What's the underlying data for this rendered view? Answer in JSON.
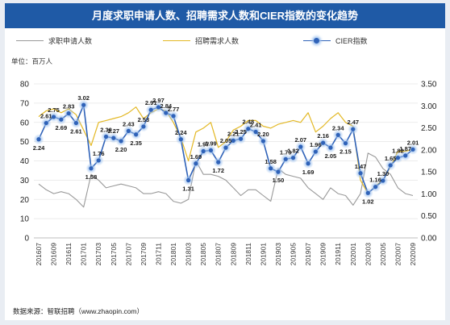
{
  "title": "月度求职申请人数、招聘需求人数和CIER指数的变化趋势",
  "unit_label": "单位：百万人",
  "source_label": "数据来源：智联招聘（www.zhaopin.com）",
  "colors": {
    "applicants": "#999999",
    "demand": "#e3b824",
    "cier": "#2f62b8",
    "title_bg": "#1f5aa6",
    "marker_glow": "#9fc2ee"
  },
  "chart_data": {
    "type": "line",
    "title": "月度求职申请人数、招聘需求人数和CIER指数的变化趋势",
    "x": [
      "201607",
      "201608",
      "201609",
      "201610",
      "201611",
      "201612",
      "201701",
      "201702",
      "201703",
      "201704",
      "201705",
      "201706",
      "201707",
      "201708",
      "201709",
      "201710",
      "201711",
      "201712",
      "201801",
      "201802",
      "201803",
      "201804",
      "201805",
      "201806",
      "201807",
      "201808",
      "201809",
      "201810",
      "201811",
      "201812",
      "201901",
      "201902",
      "201903",
      "201904",
      "201905",
      "201906",
      "201907",
      "201908",
      "201909",
      "201910",
      "201911",
      "201912",
      "202001",
      "202002",
      "202003",
      "202004",
      "202005",
      "202006",
      "202007",
      "202008",
      "202009"
    ],
    "x_tick_labels": [
      "201607",
      "201609",
      "201611",
      "201701",
      "201703",
      "201705",
      "201707",
      "201709",
      "201711",
      "201801",
      "201803",
      "201805",
      "201807",
      "201809",
      "201811",
      "201901",
      "201903",
      "201905",
      "201907",
      "201909",
      "201911",
      "202001",
      "202003",
      "202005",
      "202007",
      "202009"
    ],
    "y_left": {
      "label": "单位：百万人",
      "ylim": [
        0,
        80
      ],
      "ticks": [
        0,
        10,
        20,
        30,
        40,
        50,
        60,
        70,
        80
      ]
    },
    "y_right": {
      "ylim": [
        0,
        3.5
      ],
      "ticks": [
        "0.00",
        "0.50",
        "1.00",
        "1.50",
        "2.00",
        "2.50",
        "3.00",
        "3.50"
      ]
    },
    "legend_position": "top",
    "series": [
      {
        "name": "求职申请人数",
        "axis": "left",
        "values": [
          28,
          25,
          23,
          24,
          23,
          20,
          16,
          33,
          30,
          26,
          27,
          28,
          27,
          26,
          23,
          23,
          24,
          23,
          19,
          18,
          20,
          40,
          33,
          33,
          32,
          30,
          26,
          22,
          25,
          25,
          22,
          19,
          36,
          33,
          32,
          31,
          26,
          23,
          20,
          26,
          23,
          22,
          17,
          23,
          44,
          42,
          36,
          33,
          26,
          23,
          22
        ]
      },
      {
        "name": "招聘需求人数",
        "axis": "left",
        "values": [
          63,
          66,
          67,
          65,
          67,
          64,
          56,
          48,
          60,
          61,
          62,
          63,
          65,
          68,
          62,
          65,
          67,
          66,
          60,
          52,
          40,
          55,
          57,
          60,
          47,
          50,
          56,
          58,
          61,
          61,
          58,
          57,
          59,
          60,
          61,
          60,
          65,
          55,
          58,
          62,
          65,
          60,
          58,
          30,
          23,
          27,
          30,
          37,
          45,
          45,
          46
        ]
      },
      {
        "name": "CIER指数",
        "axis": "right",
        "values": [
          2.24,
          2.61,
          2.75,
          2.69,
          2.83,
          2.61,
          3.02,
          1.58,
          1.76,
          2.3,
          2.27,
          2.2,
          2.43,
          2.35,
          2.53,
          2.91,
          2.97,
          2.84,
          2.77,
          2.24,
          1.31,
          1.69,
          1.97,
          1.99,
          1.72,
          2.05,
          2.21,
          2.25,
          2.48,
          2.41,
          2.2,
          1.58,
          1.5,
          1.79,
          1.82,
          2.07,
          1.69,
          1.96,
          2.16,
          2.05,
          2.34,
          2.15,
          2.47,
          1.47,
          1.02,
          1.16,
          1.3,
          1.65,
          1.82,
          1.87,
          2.01
        ],
        "labels": [
          "2.24",
          "2.61",
          "2.75",
          "2.69",
          "2.83",
          "2.61",
          "3.02",
          "1.58",
          "1.76",
          "2.30",
          "2.27",
          "2.20",
          "2.43",
          "2.35",
          "2.53",
          "2.91",
          "2.97",
          "2.84",
          "2.77",
          "2.24",
          "1.31",
          "1.69",
          "1.97",
          "1.99",
          "1.72",
          "2.05",
          "2.21",
          "2.25",
          "2.48",
          "2.41",
          "2.20",
          "1.58",
          "1.50",
          "1.79",
          "1.82",
          "2.07",
          "1.69",
          "1.96",
          "2.16",
          "2.05",
          "2.34",
          "2.15",
          "2.47",
          "1.47",
          "1.02",
          "1.16",
          "1.30",
          "1.65",
          "1.82",
          "1.87",
          "2.01"
        ]
      }
    ]
  }
}
